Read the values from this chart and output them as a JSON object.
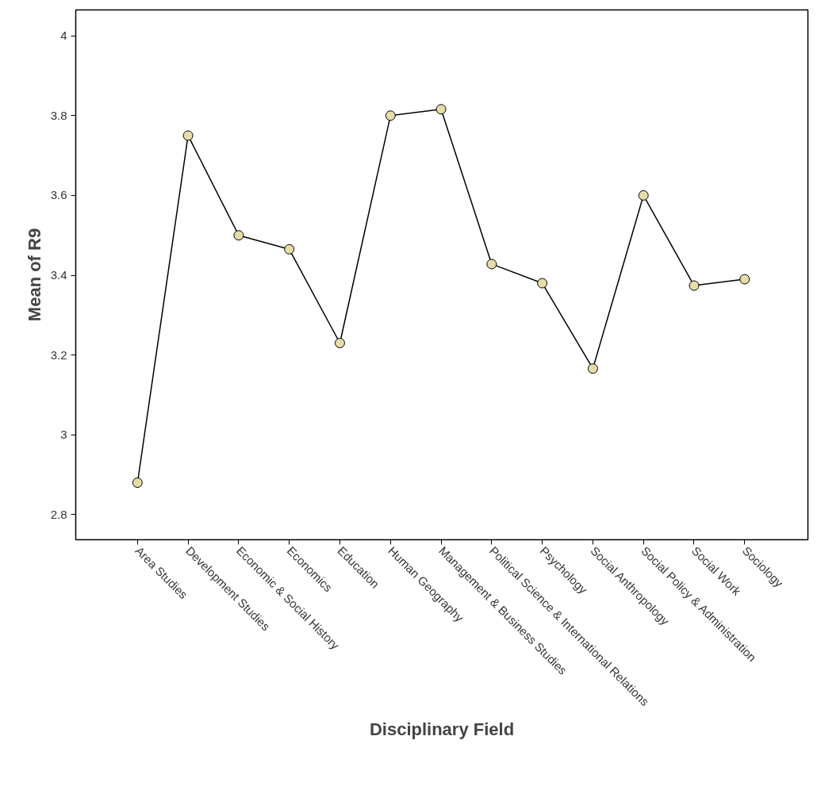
{
  "chart_data": {
    "type": "line",
    "xlabel": "Disciplinary Field",
    "ylabel": "Mean of R9",
    "categories": [
      "Area Studies",
      "Development Studies",
      "Economic & Social History",
      "Economics",
      "Education",
      "Human Geography",
      "Management & Business Studies",
      "Political Science & International Relations",
      "Psychology",
      "Social Anthropology",
      "Social Policy & Administration",
      "Social Work",
      "Sociology"
    ],
    "series": [
      {
        "color": "#e6dcaa",
        "values": [
          2.88,
          3.75,
          3.5,
          3.465,
          3.23,
          3.8,
          3.816,
          3.428,
          3.38,
          3.166,
          3.6,
          3.374,
          3.39
        ]
      }
    ],
    "marker": "circle",
    "ylim": [
      2.737,
      4.065
    ],
    "yticks": [
      2.8,
      3,
      3.2,
      3.4,
      3.6,
      3.8,
      4
    ]
  }
}
